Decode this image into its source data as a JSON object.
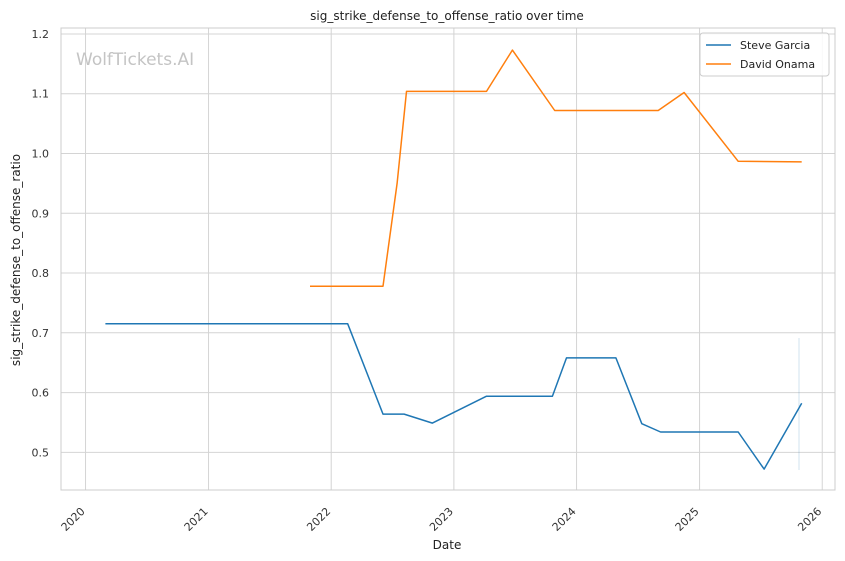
{
  "watermark": "WolfTickets.AI",
  "chart_data": {
    "type": "line",
    "title": "sig_strike_defense_to_offense_ratio over time",
    "xlabel": "Date",
    "ylabel": "sig_strike_defense_to_offense_ratio",
    "x_type": "date",
    "xlim": [
      "2019-10-20",
      "2026-02-08"
    ],
    "ylim": [
      0.437,
      1.21
    ],
    "x_ticks": [
      {
        "value": "2020-01-01",
        "label": "2020"
      },
      {
        "value": "2021-01-01",
        "label": "2021"
      },
      {
        "value": "2022-01-01",
        "label": "2022"
      },
      {
        "value": "2023-01-01",
        "label": "2023"
      },
      {
        "value": "2024-01-01",
        "label": "2024"
      },
      {
        "value": "2025-01-01",
        "label": "2025"
      },
      {
        "value": "2026-01-01",
        "label": "2026"
      }
    ],
    "y_ticks": [
      {
        "value": 0.5,
        "label": "0.5"
      },
      {
        "value": 0.6,
        "label": "0.6"
      },
      {
        "value": 0.7,
        "label": "0.7"
      },
      {
        "value": 0.8,
        "label": "0.8"
      },
      {
        "value": 0.9,
        "label": "0.9"
      },
      {
        "value": 1.0,
        "label": "1.0"
      },
      {
        "value": 1.1,
        "label": "1.1"
      },
      {
        "value": 1.2,
        "label": "1.2"
      }
    ],
    "grid": true,
    "legend_position": "top-right",
    "series": [
      {
        "name": "Steve Garcia",
        "color": "#1f77b4",
        "points": [
          {
            "x": "2020-02-29",
            "y": 0.715
          },
          {
            "x": "2022-02-19",
            "y": 0.715
          },
          {
            "x": "2022-06-04",
            "y": 0.564
          },
          {
            "x": "2022-08-06",
            "y": 0.564
          },
          {
            "x": "2022-10-29",
            "y": 0.549
          },
          {
            "x": "2023-04-08",
            "y": 0.594
          },
          {
            "x": "2023-10-21",
            "y": 0.594
          },
          {
            "x": "2023-12-02",
            "y": 0.658
          },
          {
            "x": "2024-04-27",
            "y": 0.658
          },
          {
            "x": "2024-07-13",
            "y": 0.548
          },
          {
            "x": "2024-09-07",
            "y": 0.534
          },
          {
            "x": "2025-04-26",
            "y": 0.534
          },
          {
            "x": "2025-07-12",
            "y": 0.472
          },
          {
            "x": "2025-11-01",
            "y": 0.582
          }
        ]
      },
      {
        "name": "David Onama",
        "color": "#ff7f0e",
        "points": [
          {
            "x": "2021-10-30",
            "y": 0.778
          },
          {
            "x": "2022-06-04",
            "y": 0.778
          },
          {
            "x": "2022-07-16",
            "y": 0.95
          },
          {
            "x": "2022-08-13",
            "y": 1.104
          },
          {
            "x": "2023-04-08",
            "y": 1.104
          },
          {
            "x": "2023-06-24",
            "y": 1.173
          },
          {
            "x": "2023-10-28",
            "y": 1.072
          },
          {
            "x": "2024-08-31",
            "y": 1.072
          },
          {
            "x": "2024-11-16",
            "y": 1.102
          },
          {
            "x": "2025-04-26",
            "y": 0.987
          },
          {
            "x": "2025-11-01",
            "y": 0.986
          }
        ]
      }
    ]
  }
}
